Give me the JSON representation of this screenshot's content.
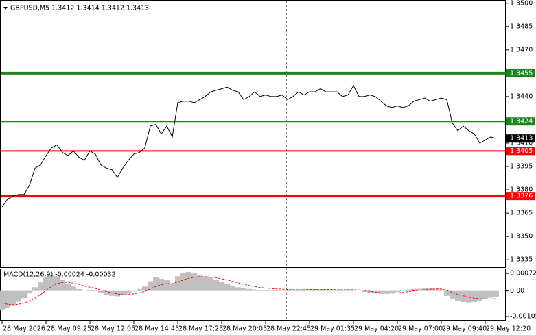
{
  "chart_data": [
    {
      "type": "line",
      "title": "GBPUSD,M5 1.3412 1.3414 1.3412 1.3413",
      "color": "#000000",
      "values": [
        1.3369,
        1.3374,
        1.3376,
        1.3377,
        1.3377,
        1.3383,
        1.3394,
        1.3396,
        1.3402,
        1.3407,
        1.3409,
        1.3404,
        1.3402,
        1.3405,
        1.3401,
        1.3399,
        1.3405,
        1.3403,
        1.3396,
        1.3394,
        1.3393,
        1.3388,
        1.3394,
        1.3399,
        1.3403,
        1.3404,
        1.3407,
        1.3421,
        1.3422,
        1.3416,
        1.3421,
        1.3414,
        1.3436,
        1.3437,
        1.3437,
        1.3436,
        1.3438,
        1.344,
        1.3443,
        1.3444,
        1.3445,
        1.3446,
        1.3444,
        1.3443,
        1.3438,
        1.344,
        1.3443,
        1.344,
        1.3441,
        1.344,
        1.344,
        1.3441,
        1.3438,
        1.344,
        1.3443,
        1.3441,
        1.3443,
        1.3443,
        1.3445,
        1.3443,
        1.3443,
        1.3443,
        1.344,
        1.3441,
        1.3447,
        1.344,
        1.344,
        1.3441,
        1.344,
        1.3437,
        1.3434,
        1.3433,
        1.3434,
        1.3433,
        1.3434,
        1.3437,
        1.3438,
        1.3439,
        1.3437,
        1.3438,
        1.3439,
        1.3438,
        1.3423,
        1.3418,
        1.3421,
        1.3418,
        1.3416,
        1.341,
        1.3412,
        1.3414,
        1.3413
      ],
      "xlim": [
        -0.375,
        91.75
      ],
      "ylim": [
        1.33301,
        1.35009
      ],
      "yticks": [
        {
          "value": 1.35,
          "label": "1.3500"
        },
        1.3485,
        {
          "value": 1.347,
          "label": "1.3470"
        },
        {
          "value": 1.344,
          "label": "1.3440"
        },
        {
          "value": 1.341,
          "label": "1.3410"
        },
        1.3395,
        {
          "value": 1.338,
          "label": "1.3380"
        },
        1.3365,
        {
          "value": 1.335,
          "label": "1.3350"
        },
        1.3335
      ],
      "levels": [
        {
          "value": 1.3455,
          "color": "#1e841e"
        },
        {
          "value": 1.3424,
          "color": "#1e841e"
        },
        {
          "value": 1.3405,
          "color": "#ff0000"
        },
        {
          "value": 1.3376,
          "color": "#ff0000"
        }
      ],
      "last_price": 1.3413
    },
    {
      "type": "macd",
      "title": "MACD(12,26,9) -0.00024 -0.00032",
      "histogram": {
        "color": "#c0c0c0",
        "values": [
          -0.0008,
          -0.0007,
          -0.00058,
          -0.00045,
          -0.0003,
          -0.0001,
          0.00015,
          0.00035,
          0.00055,
          0.00065,
          0.0006,
          0.00045,
          0.0003,
          0.00018,
          8e-05,
          0,
          5e-05,
          2e-05,
          -8e-05,
          -0.00015,
          -0.0002,
          -0.00022,
          -0.00018,
          -0.00012,
          -2e-05,
          8e-05,
          0.00018,
          0.0004,
          0.00055,
          0.0005,
          0.00045,
          0.0003,
          0.0006,
          0.00075,
          0.00078,
          0.00072,
          0.00065,
          0.0006,
          0.00055,
          0.00045,
          0.00038,
          0.0003,
          0.00022,
          0.00015,
          0.0001,
          8e-05,
          6e-05,
          4e-05,
          3e-05,
          2e-05,
          2e-05,
          1e-05,
          2e-05,
          3e-05,
          5e-05,
          6e-05,
          6e-05,
          7e-05,
          6e-05,
          6e-05,
          5e-05,
          4e-05,
          3e-05,
          6e-05,
          3e-05,
          0,
          -4e-05,
          -8e-05,
          -0.0001,
          -0.00012,
          -0.00011,
          -8e-05,
          -4e-05,
          2e-05,
          6e-05,
          8e-05,
          9e-05,
          0.0001,
          0.0001,
          8e-05,
          6e-05,
          -0.0002,
          -0.00035,
          -0.00042,
          -0.00046,
          -0.00048,
          -0.00046,
          -0.0004,
          -0.00033,
          -0.00028,
          -0.00024
        ]
      },
      "signal": {
        "color": "#ff0000",
        "values": [
          -0.0005,
          -0.00055,
          -0.00057,
          -0.00055,
          -0.0005,
          -0.00042,
          -0.0003,
          -0.00015,
          2e-05,
          0.00018,
          0.0003,
          0.00035,
          0.00035,
          0.00032,
          0.00027,
          0.0002,
          0.00015,
          0.0001,
          5e-05,
          -2e-05,
          -8e-05,
          -0.00012,
          -0.00015,
          -0.00015,
          -0.00012,
          -8e-05,
          -2e-05,
          8e-05,
          0.00018,
          0.00025,
          0.0003,
          0.0003,
          0.00036,
          0.00045,
          0.00052,
          0.00056,
          0.00058,
          0.00058,
          0.00057,
          0.00054,
          0.0005,
          0.00045,
          0.00039,
          0.00033,
          0.00027,
          0.00022,
          0.00018,
          0.00014,
          0.00012,
          0.0001,
          8e-05,
          7e-05,
          6e-05,
          5e-05,
          5e-05,
          5e-05,
          6e-05,
          6e-05,
          6e-05,
          6e-05,
          6e-05,
          5e-05,
          5e-05,
          5e-05,
          5e-05,
          4e-05,
          2e-05,
          -2e-05,
          -5e-05,
          -8e-05,
          -9e-05,
          -9e-05,
          -8e-05,
          -6e-05,
          -3e-05,
          0,
          3e-05,
          5e-05,
          7e-05,
          8e-05,
          8e-05,
          2e-05,
          -6e-05,
          -0.00014,
          -0.0002,
          -0.00026,
          -0.0003,
          -0.00032,
          -0.00033,
          -0.00033,
          -0.00032
        ]
      },
      "xlim": [
        -0.375,
        91.75
      ],
      "ylim": [
        -0.00122,
        0.00089
      ],
      "yticks": [
        0.00072,
        {
          "value": 0,
          "label": "0.00"
        },
        -0.00105
      ],
      "xticks": [
        {
          "value": 0,
          "label": "28 May 2026"
        },
        {
          "value": 8,
          "label": "28 May 09:25"
        },
        {
          "value": 16,
          "label": "28 May 12:05"
        },
        {
          "value": 24,
          "label": "28 May 14:45"
        },
        {
          "value": 32,
          "label": "28 May 17:25"
        },
        {
          "value": 40,
          "label": "28 May 20:05"
        },
        {
          "value": 48,
          "label": "28 May 22:45"
        },
        {
          "value": 56,
          "label": "29 May 01:35"
        },
        {
          "value": 64,
          "label": "29 May 04:20"
        },
        {
          "value": 72,
          "label": "29 May 07:00"
        },
        {
          "value": 80,
          "label": "29 May 09:40"
        },
        {
          "value": 88,
          "label": "29 May 12:20"
        }
      ]
    }
  ]
}
